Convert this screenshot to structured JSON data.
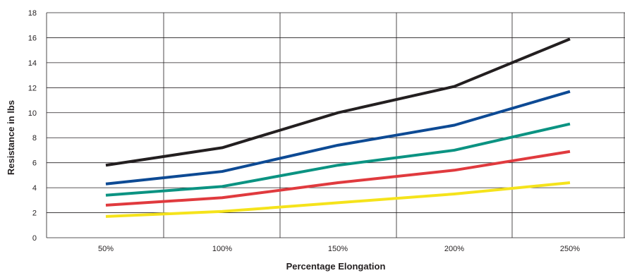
{
  "chart_data": {
    "type": "line",
    "xlabel": "Percentage Elongation",
    "ylabel": "Resistance in lbs",
    "categories": [
      "50%",
      "100%",
      "150%",
      "200%",
      "250%"
    ],
    "ylim": [
      0,
      18
    ],
    "yticks": [
      0,
      2,
      4,
      6,
      8,
      10,
      12,
      14,
      16,
      18
    ],
    "grid": true,
    "series": [
      {
        "color": "#231f20",
        "values": [
          5.8,
          7.2,
          10.0,
          12.1,
          15.9
        ]
      },
      {
        "color": "#0d4a94",
        "values": [
          4.3,
          5.3,
          7.4,
          9.0,
          11.7
        ]
      },
      {
        "color": "#0b9382",
        "values": [
          3.4,
          4.1,
          5.8,
          7.0,
          9.1
        ]
      },
      {
        "color": "#e03a3e",
        "values": [
          2.6,
          3.2,
          4.4,
          5.4,
          6.9
        ]
      },
      {
        "color": "#f5e31b",
        "values": [
          1.7,
          2.1,
          2.8,
          3.5,
          4.4
        ]
      }
    ]
  }
}
